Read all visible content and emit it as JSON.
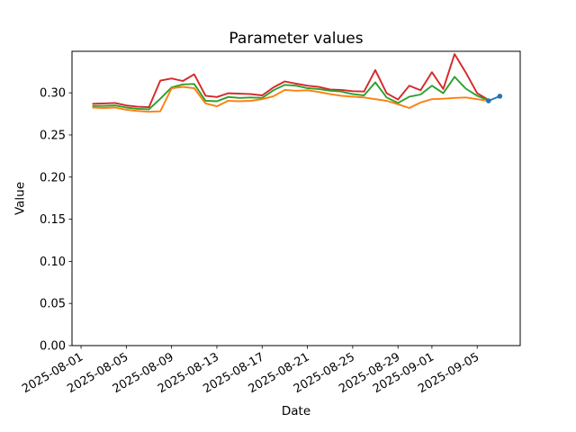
{
  "figure": {
    "background": "#ffffff",
    "axes_edge_color": "#000000",
    "text_color": "#000000"
  },
  "chart_data": {
    "type": "line",
    "title": "Parameter values",
    "xlabel": "Date",
    "ylabel": "Value",
    "grid": false,
    "legend": "none",
    "x_base_date": "2025-08-01",
    "xlim_days": [
      -0.8,
      38.8
    ],
    "ylim": [
      0,
      0.3493
    ],
    "y_ticks": [
      0.0,
      0.05,
      0.1,
      0.15,
      0.2,
      0.25,
      0.3
    ],
    "x_ticks": [
      "2025-08-01",
      "2025-08-05",
      "2025-08-09",
      "2025-08-13",
      "2025-08-17",
      "2025-08-21",
      "2025-08-25",
      "2025-08-29",
      "2025-09-01",
      "2025-09-05"
    ],
    "dates": [
      "2025-08-02",
      "2025-08-03",
      "2025-08-04",
      "2025-08-05",
      "2025-08-06",
      "2025-08-07",
      "2025-08-08",
      "2025-08-09",
      "2025-08-10",
      "2025-08-11",
      "2025-08-12",
      "2025-08-13",
      "2025-08-14",
      "2025-08-15",
      "2025-08-16",
      "2025-08-17",
      "2025-08-18",
      "2025-08-19",
      "2025-08-20",
      "2025-08-21",
      "2025-08-22",
      "2025-08-23",
      "2025-08-24",
      "2025-08-25",
      "2025-08-26",
      "2025-08-27",
      "2025-08-28",
      "2025-08-29",
      "2025-08-30",
      "2025-08-31",
      "2025-09-01",
      "2025-09-02",
      "2025-09-03",
      "2025-09-04",
      "2025-09-05",
      "2025-09-06"
    ],
    "series": [
      {
        "name": "series-red",
        "color": "#d62728",
        "values": [
          0.287,
          0.2875,
          0.288,
          0.285,
          0.2835,
          0.283,
          0.3145,
          0.317,
          0.314,
          0.322,
          0.2965,
          0.295,
          0.2995,
          0.299,
          0.2985,
          0.297,
          0.3065,
          0.3135,
          0.311,
          0.3085,
          0.307,
          0.304,
          0.3035,
          0.302,
          0.3015,
          0.327,
          0.2995,
          0.292,
          0.3085,
          0.303,
          0.3245,
          0.3045,
          0.346,
          0.324,
          0.2995,
          0.2915
        ]
      },
      {
        "name": "series-green",
        "color": "#2ca02c",
        "values": [
          0.2845,
          0.2845,
          0.285,
          0.2825,
          0.281,
          0.2805,
          0.293,
          0.3065,
          0.31,
          0.3105,
          0.2905,
          0.29,
          0.295,
          0.294,
          0.2945,
          0.294,
          0.303,
          0.3095,
          0.3085,
          0.3055,
          0.3045,
          0.3025,
          0.3015,
          0.2985,
          0.297,
          0.3125,
          0.2945,
          0.288,
          0.2955,
          0.298,
          0.3085,
          0.2995,
          0.319,
          0.305,
          0.2965,
          0.291
        ]
      },
      {
        "name": "series-orange",
        "color": "#ff7f0e",
        "values": [
          0.2825,
          0.282,
          0.2825,
          0.28,
          0.2785,
          0.2775,
          0.278,
          0.3055,
          0.307,
          0.3055,
          0.2875,
          0.284,
          0.2905,
          0.29,
          0.2905,
          0.2925,
          0.296,
          0.3035,
          0.3025,
          0.303,
          0.301,
          0.2985,
          0.2965,
          0.2955,
          0.2945,
          0.2925,
          0.2905,
          0.2865,
          0.282,
          0.2885,
          0.2925,
          0.293,
          0.294,
          0.2945,
          0.2925,
          0.2905
        ]
      },
      {
        "name": "series-blue-forecast",
        "color": "#1f77b4",
        "marker": true,
        "dates": [
          "2025-09-06",
          "2025-09-07"
        ],
        "values": [
          0.2905,
          0.296
        ]
      }
    ]
  }
}
